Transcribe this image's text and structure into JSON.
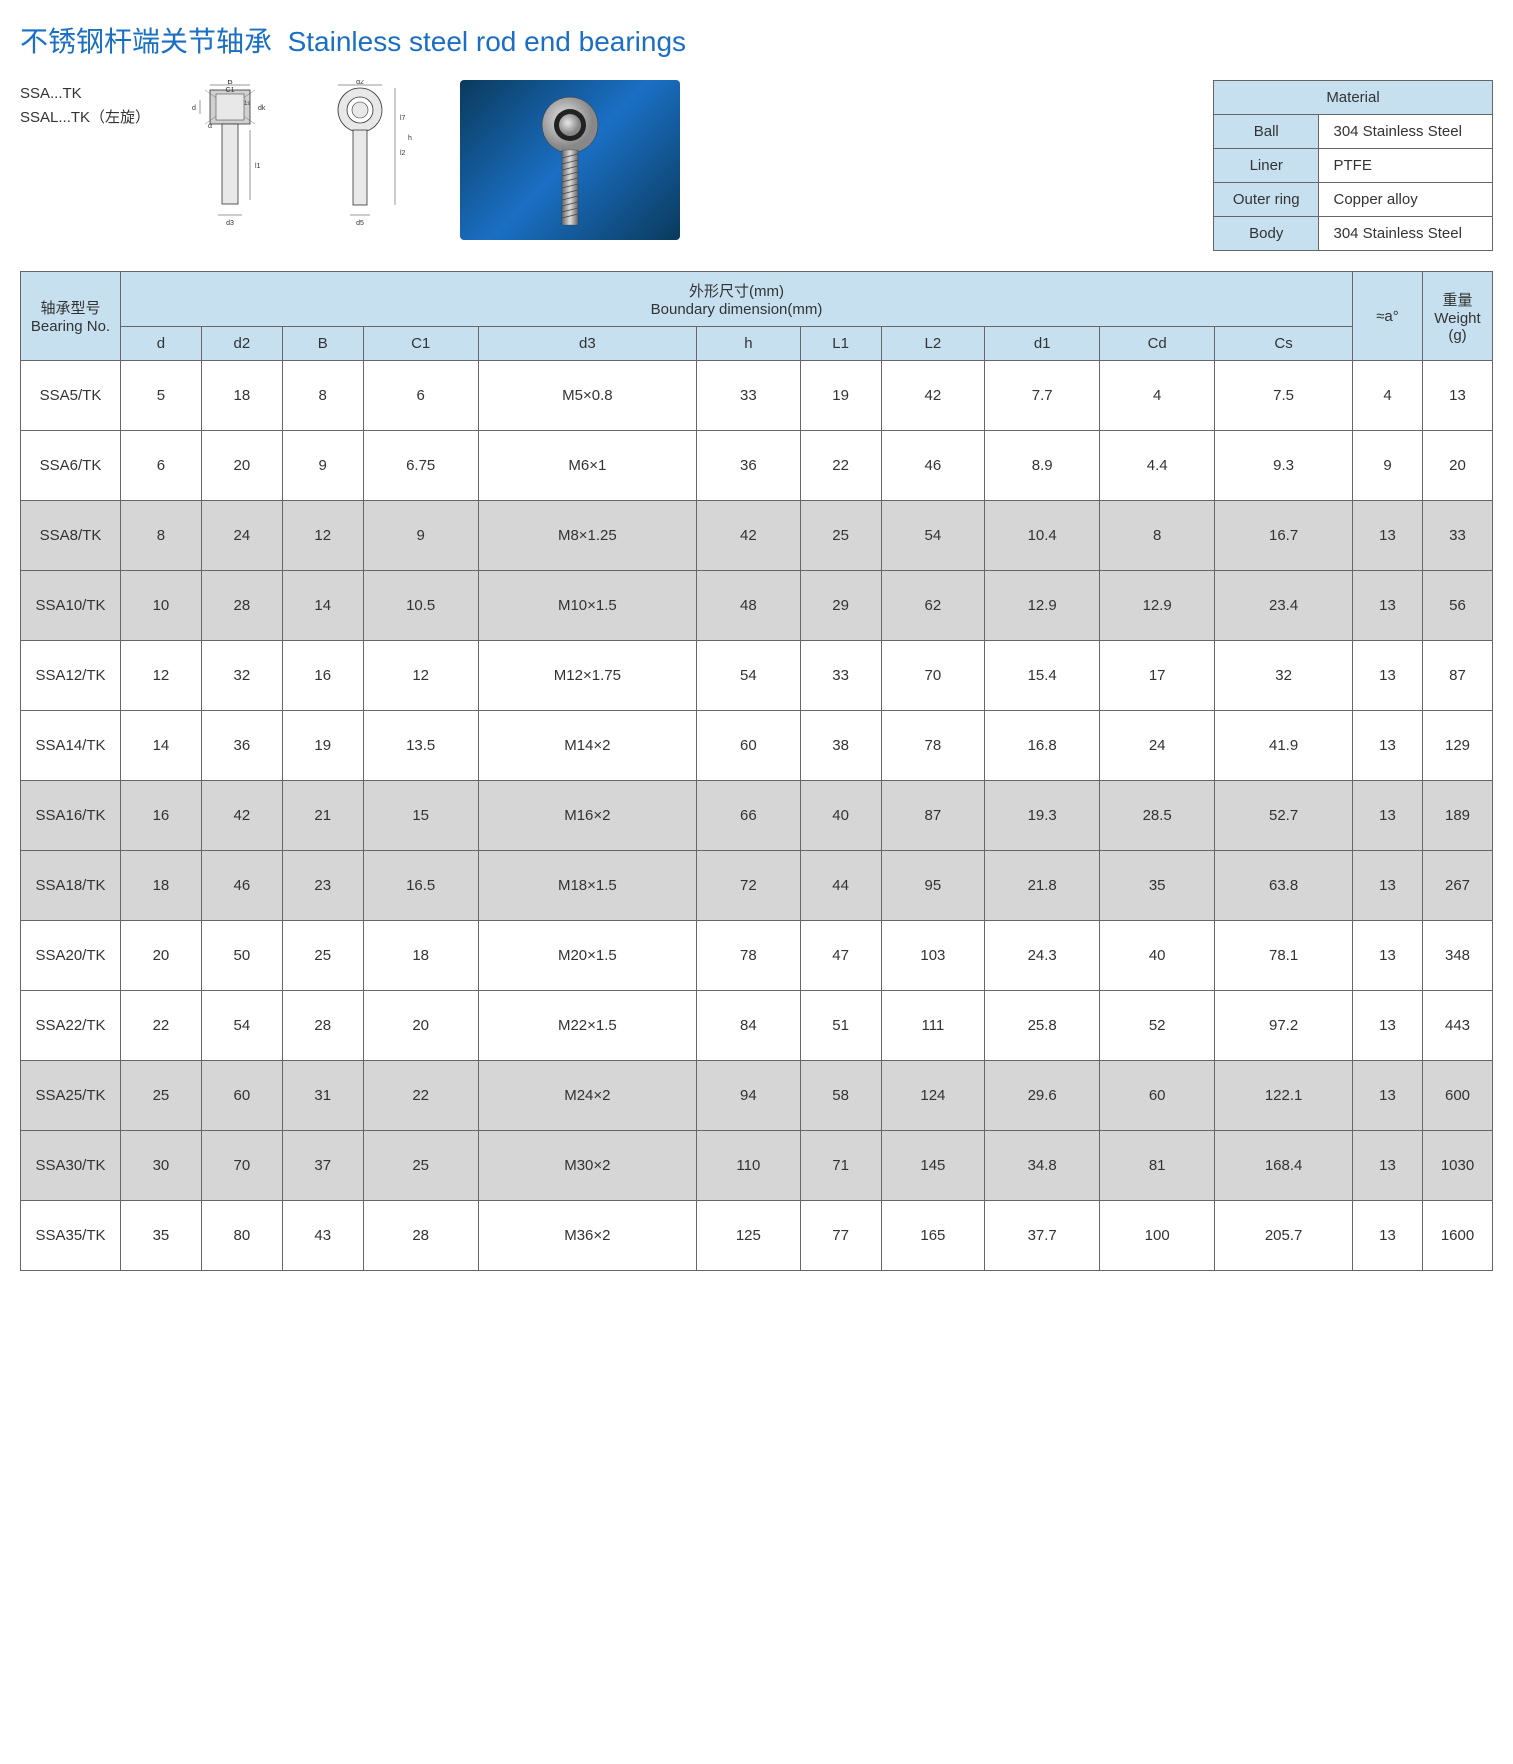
{
  "title_cn": "不锈钢杆端关节轴承",
  "title_en": "Stainless steel rod end bearings",
  "models": {
    "line1": "SSA...TK",
    "line2": "SSAL...TK（左旋）"
  },
  "diagram1_labels": [
    "B",
    "C1",
    "1s",
    "d",
    "α",
    "dk",
    "l1",
    "d3"
  ],
  "diagram2_labels": [
    "d2",
    "l7",
    "l2",
    "h",
    "d5"
  ],
  "material_table": {
    "header": "Material",
    "rows": [
      {
        "k": "Ball",
        "v": "304 Stainless Steel"
      },
      {
        "k": "Liner",
        "v": "PTFE"
      },
      {
        "k": "Outer ring",
        "v": "Copper alloy"
      },
      {
        "k": "Body",
        "v": "304 Stainless Steel"
      }
    ]
  },
  "data_table": {
    "header_group_bearing_cn": "轴承型号",
    "header_group_bearing_en": "Bearing No.",
    "header_group_dim_cn": "外形尺寸(mm)",
    "header_group_dim_en": "Boundary dimension(mm)",
    "header_alpha": "≈a°",
    "header_weight_cn": "重量",
    "header_weight_en": "Weight",
    "header_weight_unit": "(g)",
    "sub_headers": [
      "d",
      "d2",
      "B",
      "C1",
      "d3",
      "h",
      "L1",
      "L2",
      "d1",
      "Cd",
      "Cs"
    ],
    "rows": [
      {
        "no": "SSA5/TK",
        "d": "5",
        "d2": "18",
        "B": "8",
        "C1": "6",
        "d3": "M5×0.8",
        "h": "33",
        "L1": "19",
        "L2": "42",
        "d1": "7.7",
        "Cd": "4",
        "Cs": "7.5",
        "a": "4",
        "w": "13",
        "shade": "odd"
      },
      {
        "no": "SSA6/TK",
        "d": "6",
        "d2": "20",
        "B": "9",
        "C1": "6.75",
        "d3": "M6×1",
        "h": "36",
        "L1": "22",
        "L2": "46",
        "d1": "8.9",
        "Cd": "4.4",
        "Cs": "9.3",
        "a": "9",
        "w": "20",
        "shade": "odd"
      },
      {
        "no": "SSA8/TK",
        "d": "8",
        "d2": "24",
        "B": "12",
        "C1": "9",
        "d3": "M8×1.25",
        "h": "42",
        "L1": "25",
        "L2": "54",
        "d1": "10.4",
        "Cd": "8",
        "Cs": "16.7",
        "a": "13",
        "w": "33",
        "shade": "even"
      },
      {
        "no": "SSA10/TK",
        "d": "10",
        "d2": "28",
        "B": "14",
        "C1": "10.5",
        "d3": "M10×1.5",
        "h": "48",
        "L1": "29",
        "L2": "62",
        "d1": "12.9",
        "Cd": "12.9",
        "Cs": "23.4",
        "a": "13",
        "w": "56",
        "shade": "even"
      },
      {
        "no": "SSA12/TK",
        "d": "12",
        "d2": "32",
        "B": "16",
        "C1": "12",
        "d3": "M12×1.75",
        "h": "54",
        "L1": "33",
        "L2": "70",
        "d1": "15.4",
        "Cd": "17",
        "Cs": "32",
        "a": "13",
        "w": "87",
        "shade": "odd"
      },
      {
        "no": "SSA14/TK",
        "d": "14",
        "d2": "36",
        "B": "19",
        "C1": "13.5",
        "d3": "M14×2",
        "h": "60",
        "L1": "38",
        "L2": "78",
        "d1": "16.8",
        "Cd": "24",
        "Cs": "41.9",
        "a": "13",
        "w": "129",
        "shade": "odd"
      },
      {
        "no": "SSA16/TK",
        "d": "16",
        "d2": "42",
        "B": "21",
        "C1": "15",
        "d3": "M16×2",
        "h": "66",
        "L1": "40",
        "L2": "87",
        "d1": "19.3",
        "Cd": "28.5",
        "Cs": "52.7",
        "a": "13",
        "w": "189",
        "shade": "even"
      },
      {
        "no": "SSA18/TK",
        "d": "18",
        "d2": "46",
        "B": "23",
        "C1": "16.5",
        "d3": "M18×1.5",
        "h": "72",
        "L1": "44",
        "L2": "95",
        "d1": "21.8",
        "Cd": "35",
        "Cs": "63.8",
        "a": "13",
        "w": "267",
        "shade": "even"
      },
      {
        "no": "SSA20/TK",
        "d": "20",
        "d2": "50",
        "B": "25",
        "C1": "18",
        "d3": "M20×1.5",
        "h": "78",
        "L1": "47",
        "L2": "103",
        "d1": "24.3",
        "Cd": "40",
        "Cs": "78.1",
        "a": "13",
        "w": "348",
        "shade": "odd"
      },
      {
        "no": "SSA22/TK",
        "d": "22",
        "d2": "54",
        "B": "28",
        "C1": "20",
        "d3": "M22×1.5",
        "h": "84",
        "L1": "51",
        "L2": "111",
        "d1": "25.8",
        "Cd": "52",
        "Cs": "97.2",
        "a": "13",
        "w": "443",
        "shade": "odd"
      },
      {
        "no": "SSA25/TK",
        "d": "25",
        "d2": "60",
        "B": "31",
        "C1": "22",
        "d3": "M24×2",
        "h": "94",
        "L1": "58",
        "L2": "124",
        "d1": "29.6",
        "Cd": "60",
        "Cs": "122.1",
        "a": "13",
        "w": "600",
        "shade": "even"
      },
      {
        "no": "SSA30/TK",
        "d": "30",
        "d2": "70",
        "B": "37",
        "C1": "25",
        "d3": "M30×2",
        "h": "110",
        "L1": "71",
        "L2": "145",
        "d1": "34.8",
        "Cd": "81",
        "Cs": "168.4",
        "a": "13",
        "w": "1030",
        "shade": "even"
      },
      {
        "no": "SSA35/TK",
        "d": "35",
        "d2": "80",
        "B": "43",
        "C1": "28",
        "d3": "M36×2",
        "h": "125",
        "L1": "77",
        "L2": "165",
        "d1": "37.7",
        "Cd": "100",
        "Cs": "205.7",
        "a": "13",
        "w": "1600",
        "shade": "odd"
      }
    ]
  },
  "colors": {
    "title": "#1a6fc4",
    "header_bg": "#c6e0f0",
    "row_odd": "#ffffff",
    "row_even": "#d6d6d6",
    "border": "#666666",
    "photo_bg1": "#0a3a5c",
    "photo_bg2": "#1a6fc4"
  }
}
